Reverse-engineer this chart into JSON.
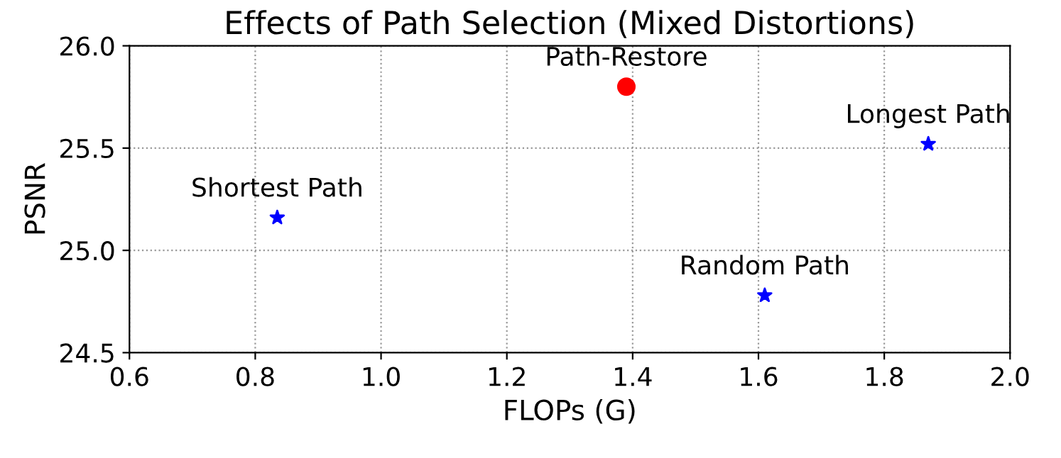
{
  "chart_data": {
    "type": "scatter",
    "title": "Effects of Path Selection (Mixed Distortions)",
    "xlabel": "FLOPs (G)",
    "ylabel": "PSNR",
    "xlim": [
      0.6,
      2.0
    ],
    "xticks": [
      0.6,
      0.8,
      {
        "value": 1,
        "label": "1.0"
      },
      1.2,
      1.4,
      1.6,
      1.8,
      {
        "value": 2,
        "label": "2.0"
      }
    ],
    "ylim": [
      24.5,
      26.0
    ],
    "yticks": [
      24.5,
      {
        "value": 25,
        "label": "25.0"
      },
      25.5,
      {
        "value": 26,
        "label": "26.0"
      }
    ],
    "grid": true,
    "series": [
      {
        "color": "#ff0000",
        "marker": "circle",
        "x": [
          1.39
        ],
        "values": [
          25.8
        ]
      },
      {
        "color": "#0000ff",
        "marker": "star",
        "x": [
          0.835,
          1.61,
          1.87
        ],
        "values": [
          25.16,
          24.78,
          25.52
        ]
      }
    ],
    "annotations": [
      {
        "text": "Path-Restore",
        "x": 1.39,
        "y": 25.8
      },
      {
        "text": "Shortest Path",
        "x": 0.835,
        "y": 25.16
      },
      {
        "text": "Random Path",
        "x": 1.61,
        "y": 24.78
      },
      {
        "text": "Longest Path",
        "x": 1.87,
        "y": 25.52
      }
    ]
  }
}
